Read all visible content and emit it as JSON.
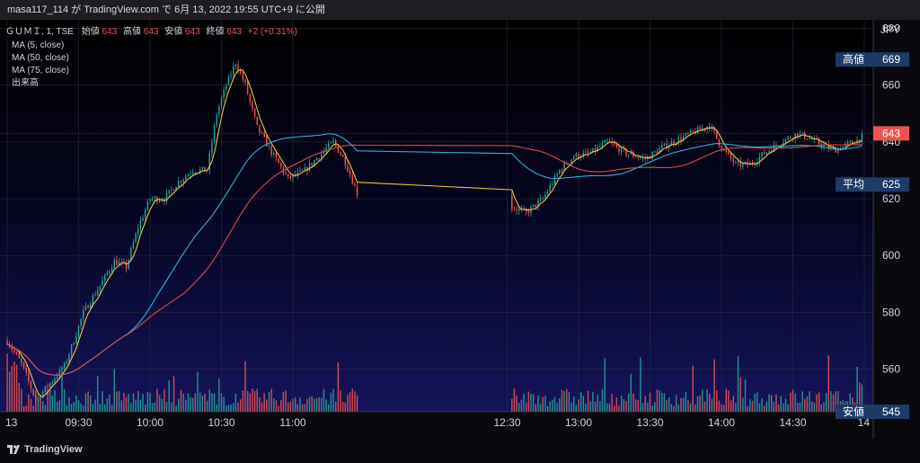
{
  "header": {
    "publish_text": "masa117_114 が TradingView.com で 6月 13, 2022 19:55 UTC+9 に公開"
  },
  "legend": {
    "symbol": "ＧＵＭＩ, 1, TSE",
    "open_label": "始値",
    "open_value": "643",
    "high_label": "高値",
    "high_value": "643",
    "low_label": "安値",
    "low_value": "643",
    "close_label": "終値",
    "close_value": "643",
    "change": "+2 (+0.31%)",
    "indicators": [
      "MA (5, close)",
      "MA (50, close)",
      "MA (75, close)",
      "出来高"
    ]
  },
  "price_axis": {
    "currency": "JPY",
    "high_tag": {
      "label": "高値",
      "value": "669"
    },
    "last_tag": {
      "value": "643"
    },
    "avg_tag": {
      "label": "平均",
      "value": "625"
    },
    "low_tag": {
      "label": "安値",
      "value": "545"
    }
  },
  "footer": {
    "brand": "TradingView"
  },
  "colors": {
    "up": "#26a69a",
    "down": "#ef5350",
    "ma5": "#f5c242",
    "ma50": "#29b6d6",
    "ma75": "#e04848",
    "tag_bg": "#1e3a66",
    "last_tag_bg": "#ef5350"
  },
  "chart_data": {
    "type": "candlestick",
    "ylim": [
      545,
      683
    ],
    "yticks": [
      560,
      580,
      600,
      620,
      640,
      660,
      680
    ],
    "time_range": [
      "09:00",
      "15:00"
    ],
    "time_ticks": [
      {
        "label": "13",
        "t": "09:00"
      },
      {
        "label": "09:30",
        "t": "09:30"
      },
      {
        "label": "10:00",
        "t": "10:00"
      },
      {
        "label": "10:30",
        "t": "10:30"
      },
      {
        "label": "11:00",
        "t": "11:00"
      },
      {
        "label": "12:30",
        "t": "12:30"
      },
      {
        "label": "13:00",
        "t": "13:00"
      },
      {
        "label": "13:30",
        "t": "13:30"
      },
      {
        "label": "14:00",
        "t": "14:00"
      },
      {
        "label": "14:30",
        "t": "14:30"
      },
      {
        "label": "14",
        "t": "15:00"
      }
    ],
    "price_path": [
      [
        "09:00",
        570
      ],
      [
        "09:06",
        562
      ],
      [
        "09:12",
        549
      ],
      [
        "09:18",
        555
      ],
      [
        "09:24",
        561
      ],
      [
        "09:28",
        570
      ],
      [
        "09:32",
        580
      ],
      [
        "09:38",
        588
      ],
      [
        "09:45",
        598
      ],
      [
        "09:50",
        596
      ],
      [
        "09:55",
        610
      ],
      [
        "10:00",
        620
      ],
      [
        "10:06",
        620
      ],
      [
        "10:12",
        626
      ],
      [
        "10:18",
        630
      ],
      [
        "10:24",
        630
      ],
      [
        "10:28",
        650
      ],
      [
        "10:32",
        660
      ],
      [
        "10:36",
        668
      ],
      [
        "10:40",
        660
      ],
      [
        "10:45",
        645
      ],
      [
        "10:52",
        635
      ],
      [
        "10:58",
        627
      ],
      [
        "11:05",
        630
      ],
      [
        "11:12",
        636
      ],
      [
        "11:17",
        640
      ],
      [
        "11:22",
        633
      ],
      [
        "11:27",
        622
      ],
      [
        "12:32",
        617
      ],
      [
        "12:38",
        615
      ],
      [
        "12:45",
        620
      ],
      [
        "12:52",
        630
      ],
      [
        "12:58",
        635
      ],
      [
        "13:05",
        636
      ],
      [
        "13:12",
        640
      ],
      [
        "13:20",
        636
      ],
      [
        "13:28",
        634
      ],
      [
        "13:35",
        638
      ],
      [
        "13:42",
        641
      ],
      [
        "13:50",
        644
      ],
      [
        "13:55",
        646
      ],
      [
        "14:00",
        638
      ],
      [
        "14:06",
        632
      ],
      [
        "14:12",
        632
      ],
      [
        "14:18",
        636
      ],
      [
        "14:25",
        640
      ],
      [
        "14:32",
        643
      ],
      [
        "14:40",
        640
      ],
      [
        "14:47",
        637
      ],
      [
        "14:53",
        639
      ],
      [
        "15:00",
        642
      ]
    ]
  }
}
